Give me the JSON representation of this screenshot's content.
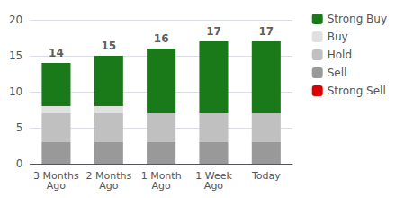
{
  "chart_data": {
    "type": "bar",
    "stacked": true,
    "categories": [
      "3 Months\nAgo",
      "2 Months\nAgo",
      "1 Month\nAgo",
      "1 Week\nAgo",
      "Today"
    ],
    "series": [
      {
        "name": "Strong Buy",
        "color": "#1a7a1a",
        "values": [
          6,
          7,
          9,
          10,
          10
        ]
      },
      {
        "name": "Buy",
        "color": "#e0e0e0",
        "values": [
          1,
          1,
          0,
          0,
          0
        ]
      },
      {
        "name": "Hold",
        "color": "#c0c0c0",
        "values": [
          4,
          4,
          4,
          4,
          4
        ]
      },
      {
        "name": "Sell",
        "color": "#999999",
        "values": [
          3,
          3,
          3,
          3,
          3
        ]
      },
      {
        "name": "Strong Sell",
        "color": "#dd0000",
        "values": [
          0,
          0,
          0,
          0,
          0
        ]
      }
    ],
    "totals": [
      14,
      15,
      16,
      17,
      17
    ],
    "ylim": [
      0,
      20
    ],
    "yticks": [
      0,
      5,
      10,
      15,
      20
    ],
    "grid": true,
    "legend": "right"
  }
}
